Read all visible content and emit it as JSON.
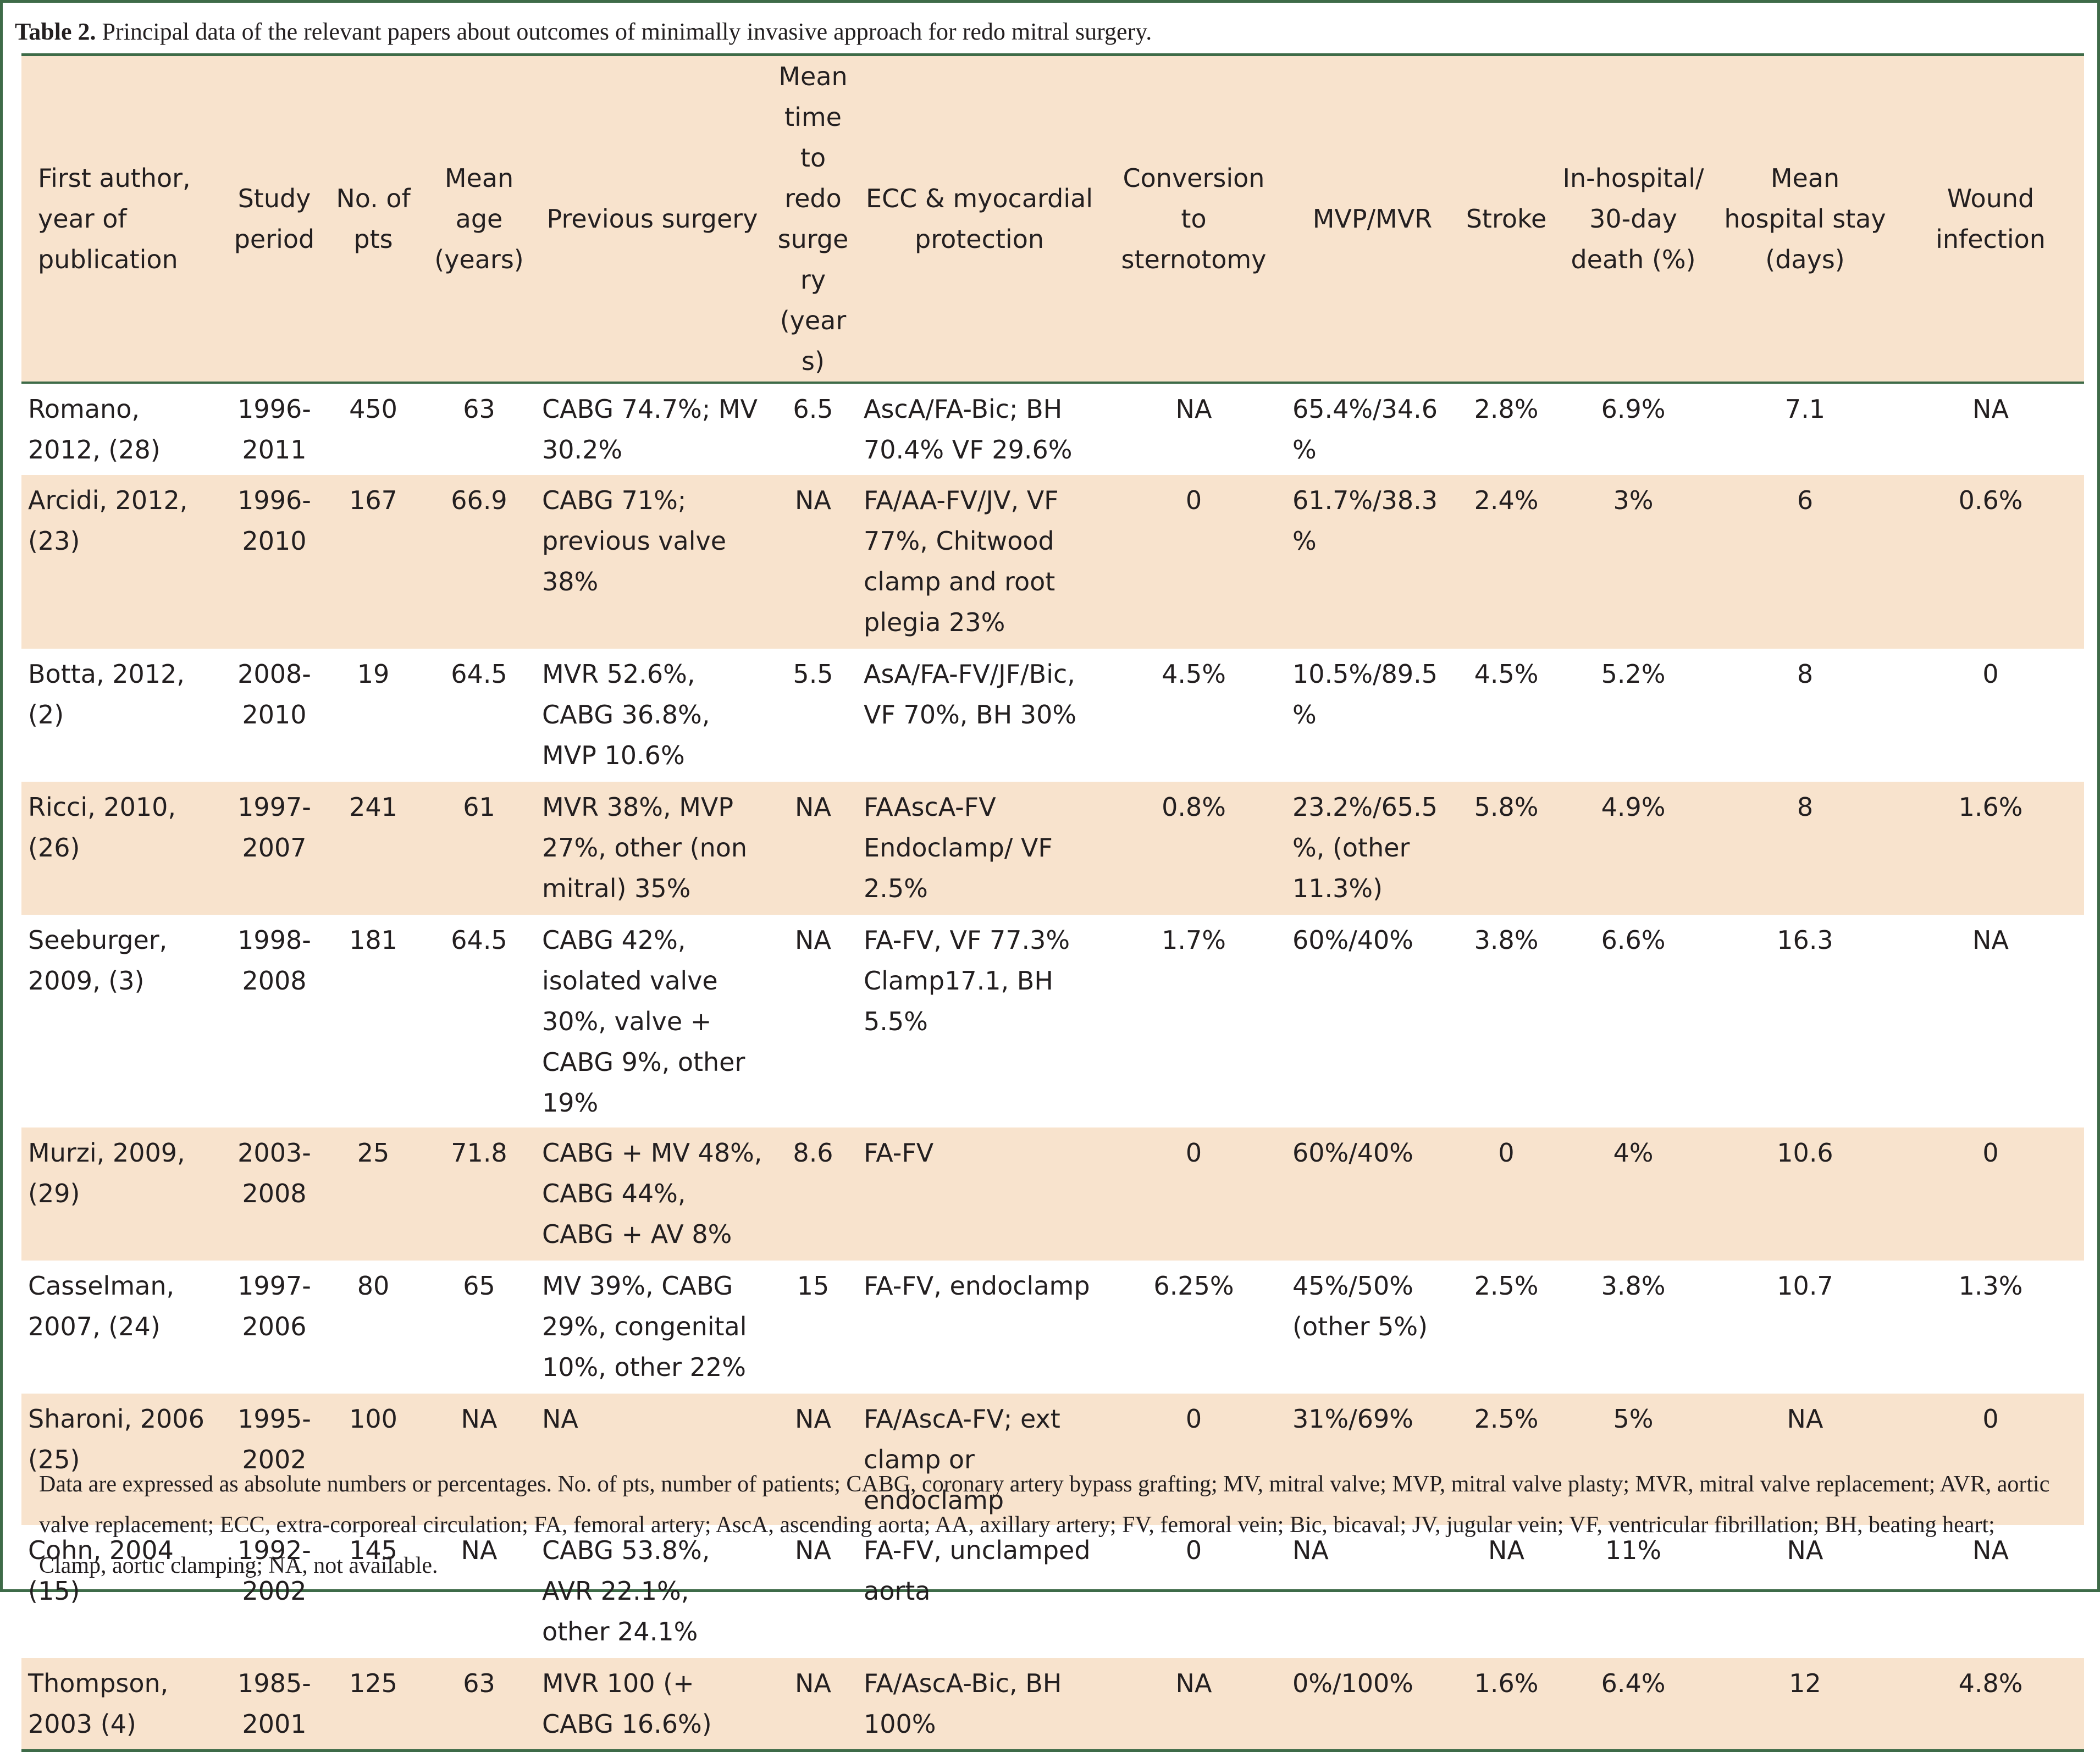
{
  "caption": {
    "label": "Table 2.",
    "text": " Principal data of the relevant papers about outcomes of minimally invasive approach for redo mitral surgery."
  },
  "columns": [
    "First author, year of publication",
    "Study period",
    "No. of pts",
    "Mean age (years)",
    "Previous surgery",
    "Mean time to redo surgery (years)",
    "ECC & myocardial protection",
    "Conversion to sternotomy",
    "MVP/MVR",
    "Stroke",
    "In-hospital/ 30-day death (%)",
    "Mean hospital stay (days)",
    "Wound infection"
  ],
  "rows": [
    {
      "author": "Romano, 2012, (28)",
      "period": "1996-2011",
      "pts": "450",
      "age": "63",
      "previous": "CABG 74.7%; MV 30.2%",
      "time": "6.5",
      "ecc": "AscA/FA-Bic; BH 70.4% VF 29.6%",
      "conversion": "NA",
      "mvp_mvr": "65.4%/34.6%",
      "stroke": "2.8%",
      "death": "6.9%",
      "stay": "7.1",
      "wound": "NA"
    },
    {
      "author": "Arcidi, 2012, (23)",
      "period": "1996-2010",
      "pts": "167",
      "age": "66.9",
      "previous": "CABG 71%; previous valve 38%",
      "time": "NA",
      "ecc": "FA/AA-FV/JV, VF 77%, Chitwood clamp and root plegia 23%",
      "conversion": "0",
      "mvp_mvr": "61.7%/38.3%",
      "stroke": "2.4%",
      "death": "3%",
      "stay": "6",
      "wound": "0.6%"
    },
    {
      "author": "Botta, 2012, (2)",
      "period": "2008-2010",
      "pts": "19",
      "age": "64.5",
      "previous": "MVR 52.6%, CABG 36.8%, MVP 10.6%",
      "time": "5.5",
      "ecc": "AsA/FA-FV/JF/Bic, VF 70%, BH 30%",
      "conversion": "4.5%",
      "mvp_mvr": "10.5%/89.5%",
      "stroke": "4.5%",
      "death": "5.2%",
      "stay": "8",
      "wound": "0"
    },
    {
      "author": "Ricci, 2010, (26)",
      "period": "1997-2007",
      "pts": "241",
      "age": "61",
      "previous": "MVR 38%, MVP 27%, other (non mitral) 35%",
      "time": "NA",
      "ecc": "FAAscA-FV Endoclamp/ VF 2.5%",
      "conversion": "0.8%",
      "mvp_mvr": "23.2%/65.5%, (other 11.3%)",
      "stroke": "5.8%",
      "death": "4.9%",
      "stay": "8",
      "wound": "1.6%"
    },
    {
      "author": "Seeburger, 2009, (3)",
      "period": "1998-2008",
      "pts": "181",
      "age": "64.5",
      "previous": "CABG 42%, isolated valve 30%, valve + CABG 9%, other 19%",
      "time": "NA",
      "ecc": "FA-FV, VF 77.3% Clamp17.1, BH 5.5%",
      "conversion": "1.7%",
      "mvp_mvr": "60%/40%",
      "stroke": "3.8%",
      "death": "6.6%",
      "stay": "16.3",
      "wound": "NA"
    },
    {
      "author": "Murzi, 2009, (29)",
      "period": "2003-2008",
      "pts": "25",
      "age": "71.8",
      "previous": "CABG + MV 48%, CABG 44%, CABG + AV 8%",
      "time": "8.6",
      "ecc": "FA-FV",
      "conversion": "0",
      "mvp_mvr": "60%/40%",
      "stroke": "0",
      "death": "4%",
      "stay": "10.6",
      "wound": "0"
    },
    {
      "author": "Casselman, 2007, (24)",
      "period": "1997-2006",
      "pts": "80",
      "age": "65",
      "previous": "MV 39%, CABG 29%, congenital 10%, other 22%",
      "time": "15",
      "ecc": "FA-FV, endoclamp",
      "conversion": "6.25%",
      "mvp_mvr": "45%/50% (other 5%)",
      "stroke": "2.5%",
      "death": "3.8%",
      "stay": "10.7",
      "wound": "1.3%"
    },
    {
      "author": "Sharoni, 2006 (25)",
      "period": "1995-2002",
      "pts": "100",
      "age": "NA",
      "previous": "NA",
      "time": "NA",
      "ecc": "FA/AscA-FV; ext clamp or endoclamp",
      "conversion": "0",
      "mvp_mvr": "31%/69%",
      "stroke": "2.5%",
      "death": "5%",
      "stay": "NA",
      "wound": "0"
    },
    {
      "author": "Cohn, 2004 (15)",
      "period": "1992-2002",
      "pts": "145",
      "age": "NA",
      "previous": "CABG 53.8%, AVR 22.1%, other 24.1%",
      "time": "NA",
      "ecc": "FA-FV, unclamped aorta",
      "conversion": "0",
      "mvp_mvr": "NA",
      "stroke": "NA",
      "death": "11%",
      "stay": "NA",
      "wound": "NA"
    },
    {
      "author": "Thompson, 2003 (4)",
      "period": "1985-2001",
      "pts": "125",
      "age": "63",
      "previous": "MVR 100 (+ CABG 16.6%)",
      "time": "NA",
      "ecc": "FA/AscA-Bic, BH 100%",
      "conversion": "NA",
      "mvp_mvr": "0%/100%",
      "stroke": "1.6%",
      "death": "6.4%",
      "stay": "12",
      "wound": "4.8%"
    }
  ],
  "footnote": "Data are expressed as absolute numbers or percentages. No. of pts, number of patients; CABG, coronary artery bypass grafting; MV, mitral valve; MVP, mitral valve plasty; MVR, mitral valve replacement; AVR, aortic valve replacement; ECC, extra-corporeal circulation; FA, femoral artery; AscA, ascending aorta; AA, axillary artery; FV, femoral vein; Bic, bicaval; JV, jugular vein; VF, ventricular fibrillation; BH, beating heart; Clamp, aortic clamping; NA, not available."
}
